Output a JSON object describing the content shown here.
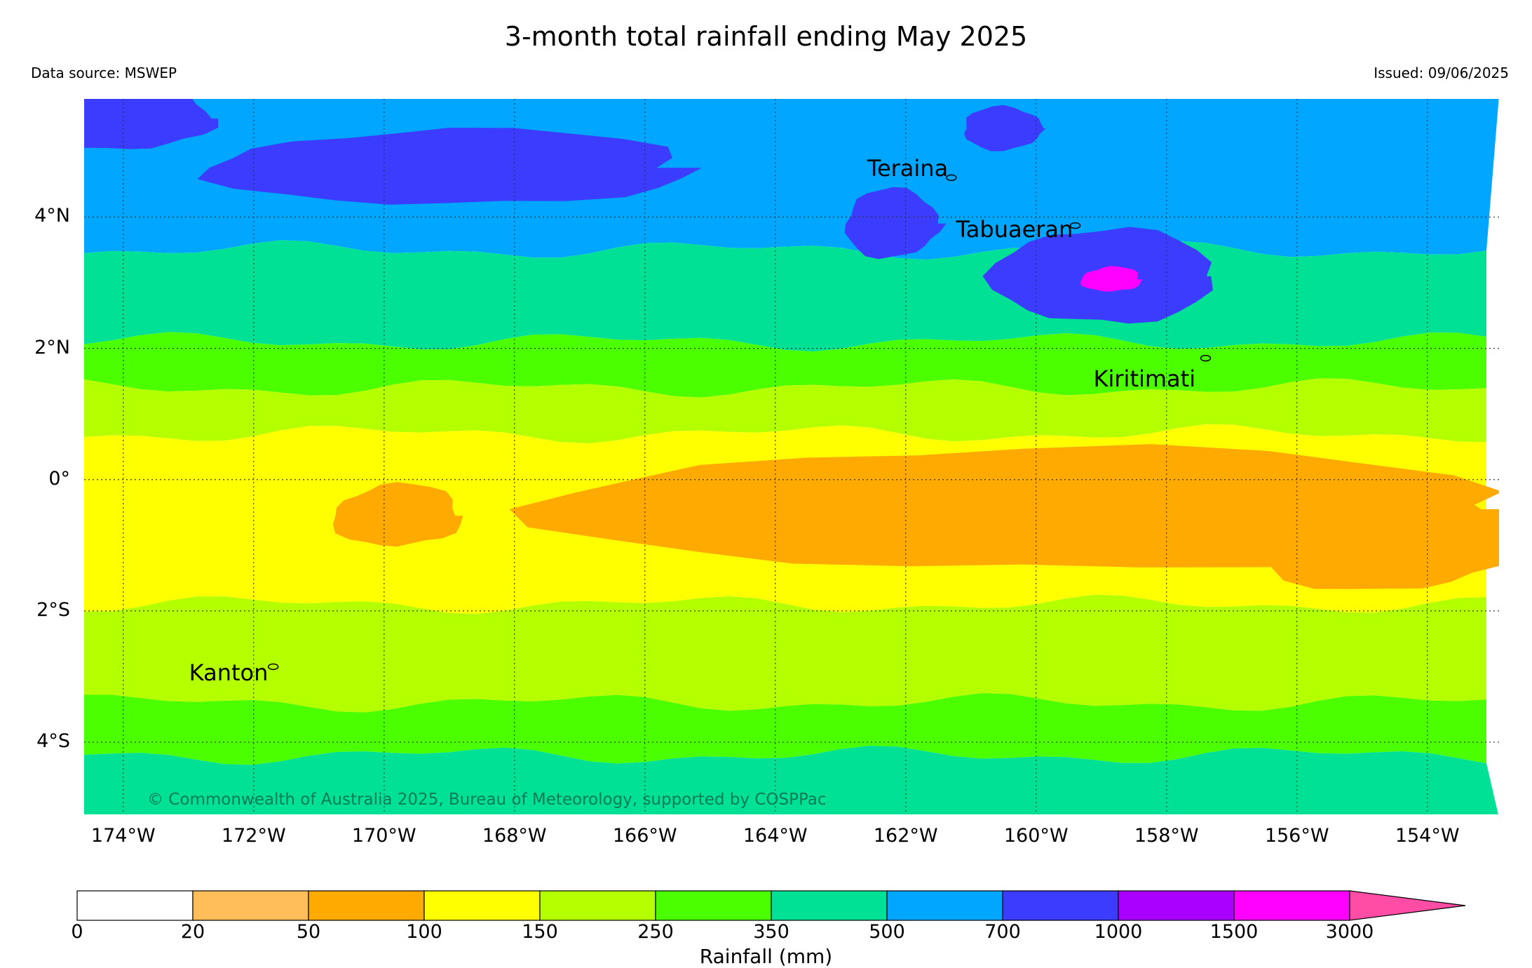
{
  "header": {
    "title": "3-month total rainfall ending May 2025",
    "source": "Data source: MSWEP",
    "issued": "Issued: 09/06/2025"
  },
  "map": {
    "lon_range": [
      -174.6,
      -152.9
    ],
    "lat_range": [
      -5.1,
      5.8
    ],
    "lat_ticks": [
      {
        "value": 4,
        "label": "4°N"
      },
      {
        "value": 2,
        "label": "2°N"
      },
      {
        "value": 0,
        "label": "0°"
      },
      {
        "value": -2,
        "label": "2°S"
      },
      {
        "value": -4,
        "label": "4°S"
      }
    ],
    "lon_ticks": [
      {
        "value": -174,
        "label": "174°W"
      },
      {
        "value": -172,
        "label": "172°W"
      },
      {
        "value": -170,
        "label": "170°W"
      },
      {
        "value": -168,
        "label": "168°W"
      },
      {
        "value": -166,
        "label": "166°W"
      },
      {
        "value": -164,
        "label": "164°W"
      },
      {
        "value": -162,
        "label": "162°W"
      },
      {
        "value": -160,
        "label": "160°W"
      },
      {
        "value": -158,
        "label": "158°W"
      },
      {
        "value": -156,
        "label": "156°W"
      },
      {
        "value": -154,
        "label": "154°W"
      }
    ],
    "grid": "dotted",
    "islands": [
      {
        "name": "Teraina",
        "lon": -161.3,
        "lat": 4.6
      },
      {
        "name": "Tabuaeran",
        "lon": -159.4,
        "lat": 3.87
      },
      {
        "name": "Kiritimati",
        "lon": -157.4,
        "lat": 1.85
      },
      {
        "name": "Kanton",
        "lon": -171.7,
        "lat": -2.85
      }
    ],
    "copyright": "© Commonwealth of Australia 2025, Bureau of Meteorology, supported by COSPPac",
    "rainfall_zones_mm": [
      {
        "band": "500-700",
        "lat_from": 3.5,
        "lat_to": 5.8,
        "color": "#00a6ff"
      },
      {
        "band": "350-500",
        "lat_from": 2.1,
        "lat_to": 3.5,
        "color": "#00e196"
      },
      {
        "band": "250-350",
        "lat_from": 1.4,
        "lat_to": 2.1,
        "color": "#4bff00"
      },
      {
        "band": "150-250",
        "lat_from": 0.7,
        "lat_to": 1.4,
        "color": "#b4ff00"
      },
      {
        "band": "100-150",
        "lat_from": -1.9,
        "lat_to": 0.7,
        "color": "#ffff00"
      },
      {
        "band": "150-250",
        "lat_from": -3.4,
        "lat_to": -1.9,
        "color": "#b4ff00"
      },
      {
        "band": "250-350",
        "lat_from": -4.2,
        "lat_to": -3.4,
        "color": "#4bff00"
      },
      {
        "band": "350-500",
        "lat_from": -5.1,
        "lat_to": -4.2,
        "color": "#00e196"
      }
    ]
  },
  "colorbar": {
    "title": "Rainfall (mm)",
    "bins": [
      {
        "from": "0",
        "to": "20",
        "color": "#ffffff"
      },
      {
        "from": "20",
        "to": "50",
        "color": "#ffbe5a"
      },
      {
        "from": "50",
        "to": "100",
        "color": "#ffaa00"
      },
      {
        "from": "100",
        "to": "150",
        "color": "#ffff00"
      },
      {
        "from": "150",
        "to": "250",
        "color": "#b4ff00"
      },
      {
        "from": "250",
        "to": "350",
        "color": "#4bff00"
      },
      {
        "from": "350",
        "to": "500",
        "color": "#00e196"
      },
      {
        "from": "500",
        "to": "700",
        "color": "#00a6ff"
      },
      {
        "from": "700",
        "to": "1000",
        "color": "#3c3cff"
      },
      {
        "from": "1000",
        "to": "1500",
        "color": "#aa00ff"
      },
      {
        "from": "1500",
        "to": "3000",
        "color": "#ff00ff"
      },
      {
        "from": "3000",
        "to": "",
        "color": "#ff4da6"
      }
    ],
    "tick_labels": [
      "0",
      "20",
      "50",
      "100",
      "150",
      "250",
      "350",
      "500",
      "700",
      "1000",
      "1500",
      "3000"
    ]
  }
}
